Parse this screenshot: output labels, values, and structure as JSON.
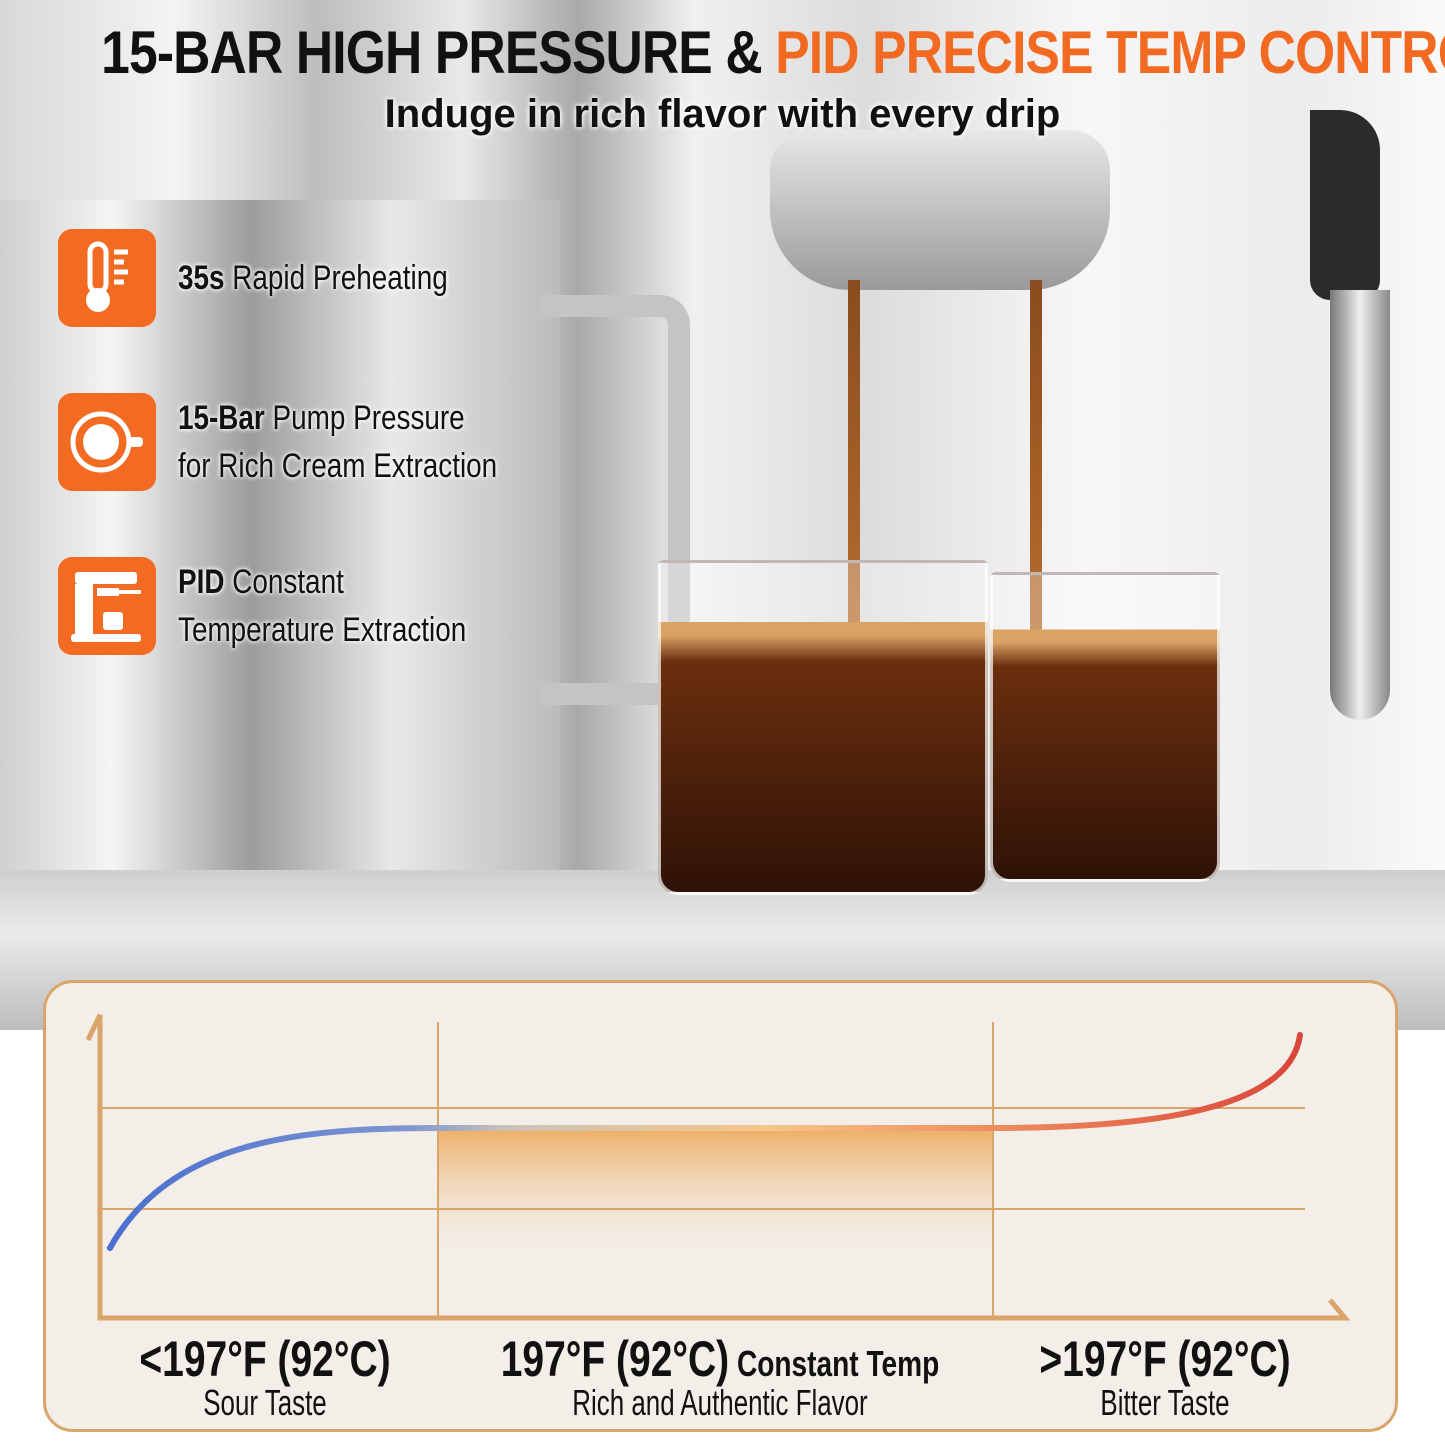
{
  "header": {
    "title_part1": "15-BAR HIGH PRESSURE & ",
    "title_part2": "PID PRECISE TEMP CONTROL",
    "subtitle": "Induge in rich flavor with every drip"
  },
  "colors": {
    "accent": "#f26a21",
    "icon_bg": "#f36b22",
    "panel_bg": "#f3eee7",
    "panel_border": "#d9a56a",
    "curve_cold": "#4a6fd0",
    "curve_hot": "#d9463a"
  },
  "features": [
    {
      "icon": "thermometer-icon",
      "bold": "35s",
      "text": " Rapid Preheating",
      "line2": ""
    },
    {
      "icon": "coffee-crema-icon",
      "bold": "15-Bar",
      "text": " Pump Pressure",
      "line2": "for Rich Cream Extraction"
    },
    {
      "icon": "espresso-machine-icon",
      "bold": "PID",
      "text": " Constant",
      "line2": "Temperature Extraction"
    }
  ],
  "diagram": {
    "zones": [
      {
        "temp": "<197°F (92°C)",
        "extra": "",
        "taste": "Sour Taste"
      },
      {
        "temp": "197°F (92°C)",
        "extra": " Constant Temp",
        "taste": "Rich and Authentic Flavor"
      },
      {
        "temp": ">197°F (92°C)",
        "extra": "",
        "taste": "Bitter Taste"
      }
    ]
  }
}
